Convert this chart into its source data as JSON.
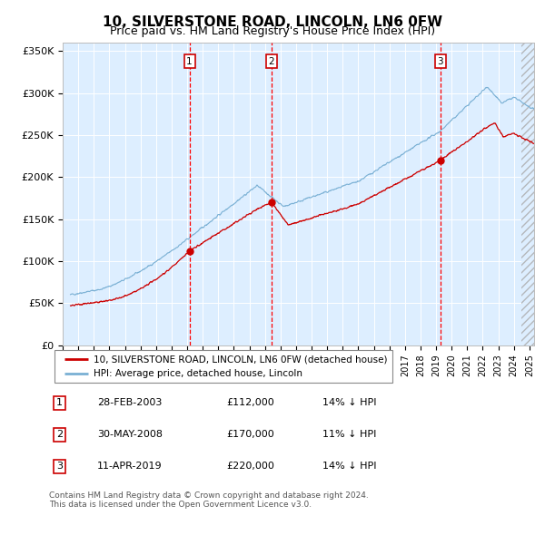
{
  "title": "10, SILVERSTONE ROAD, LINCOLN, LN6 0FW",
  "subtitle": "Price paid vs. HM Land Registry's House Price Index (HPI)",
  "title_fontsize": 11,
  "subtitle_fontsize": 9,
  "background_color": "#ffffff",
  "plot_bg_color": "#ddeeff",
  "ylim": [
    0,
    360000
  ],
  "yticks": [
    0,
    50000,
    100000,
    150000,
    200000,
    250000,
    300000,
    350000
  ],
  "ytick_labels": [
    "£0",
    "£50K",
    "£100K",
    "£150K",
    "£200K",
    "£250K",
    "£300K",
    "£350K"
  ],
  "sale_dates": [
    2003.15,
    2008.42,
    2019.28
  ],
  "sale_prices": [
    112000,
    170000,
    220000
  ],
  "vline_color": "#ff0000",
  "dot_color": "#cc0000",
  "hpi_line_color": "#7ab0d4",
  "price_line_color": "#cc0000",
  "legend_items": [
    "10, SILVERSTONE ROAD, LINCOLN, LN6 0FW (detached house)",
    "HPI: Average price, detached house, Lincoln"
  ],
  "table_rows": [
    {
      "num": "1",
      "date": "28-FEB-2003",
      "price": "£112,000",
      "hpi": "14% ↓ HPI"
    },
    {
      "num": "2",
      "date": "30-MAY-2008",
      "price": "£170,000",
      "hpi": "11% ↓ HPI"
    },
    {
      "num": "3",
      "date": "11-APR-2019",
      "price": "£220,000",
      "hpi": "14% ↓ HPI"
    }
  ],
  "footnote": "Contains HM Land Registry data © Crown copyright and database right 2024.\nThis data is licensed under the Open Government Licence v3.0.",
  "xmin": 1995.5,
  "xmax": 2025.3,
  "hatch_start": 2024.5
}
